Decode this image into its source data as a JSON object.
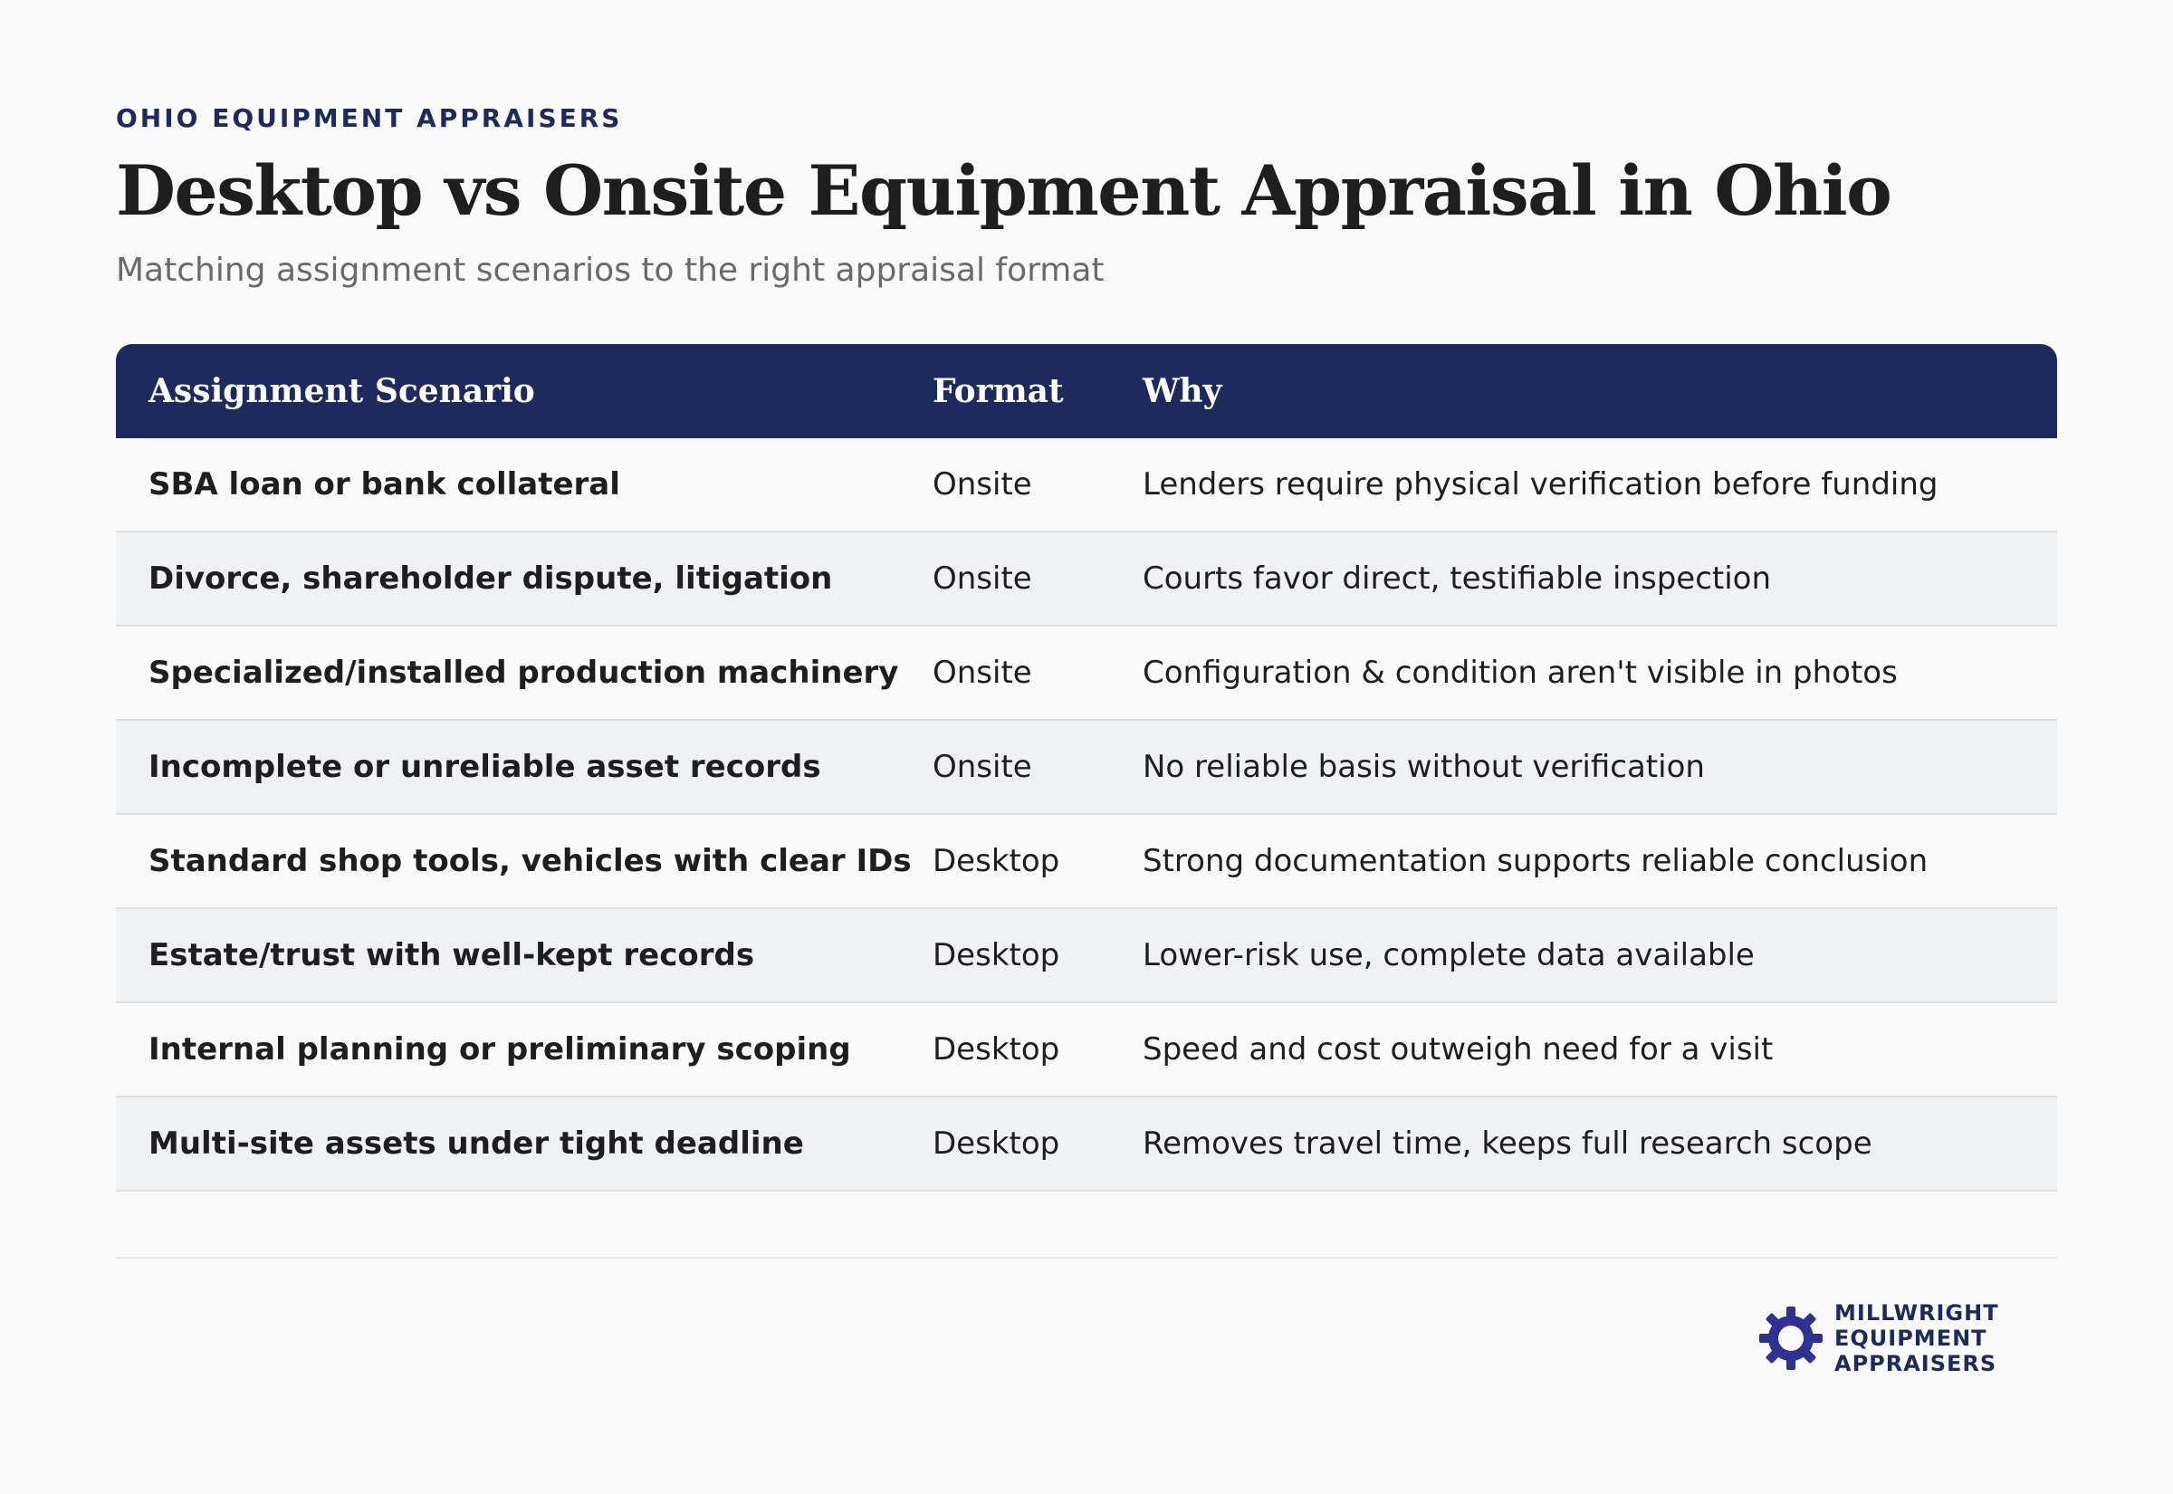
{
  "header": {
    "eyebrow": "OHIO EQUIPMENT APPRAISERS",
    "title": "Desktop vs Onsite Equipment Appraisal in Ohio",
    "subtitle": "Matching assignment scenarios to the right appraisal format"
  },
  "table": {
    "columns": [
      "Assignment Scenario",
      "Format",
      "Why"
    ],
    "rows": [
      {
        "scenario": "SBA loan or bank collateral",
        "format": "Onsite",
        "why": "Lenders require physical verification before funding"
      },
      {
        "scenario": "Divorce, shareholder dispute, litigation",
        "format": "Onsite",
        "why": "Courts favor direct, testifiable inspection"
      },
      {
        "scenario": "Specialized/installed production machinery",
        "format": "Onsite",
        "why": "Configuration & condition aren't visible in photos"
      },
      {
        "scenario": "Incomplete or unreliable asset records",
        "format": "Onsite",
        "why": "No reliable basis without verification"
      },
      {
        "scenario": "Standard shop tools, vehicles with clear IDs",
        "format": "Desktop",
        "why": "Strong documentation supports reliable conclusion"
      },
      {
        "scenario": "Estate/trust with well-kept records",
        "format": "Desktop",
        "why": "Lower-risk use, complete data available"
      },
      {
        "scenario": "Internal planning or preliminary scoping",
        "format": "Desktop",
        "why": "Speed and cost outweigh need for a visit"
      },
      {
        "scenario": "Multi-site assets under tight deadline",
        "format": "Desktop",
        "why": "Removes travel time, keeps full research scope"
      }
    ]
  },
  "logo": {
    "icon": "gear-icon",
    "lines": [
      "MILLWRIGHT",
      "EQUIPMENT",
      "APPRAISERS"
    ]
  },
  "colors": {
    "navy": "#1c2a5e",
    "row_alt": "#f0f1f4",
    "background": "#fafafa"
  }
}
